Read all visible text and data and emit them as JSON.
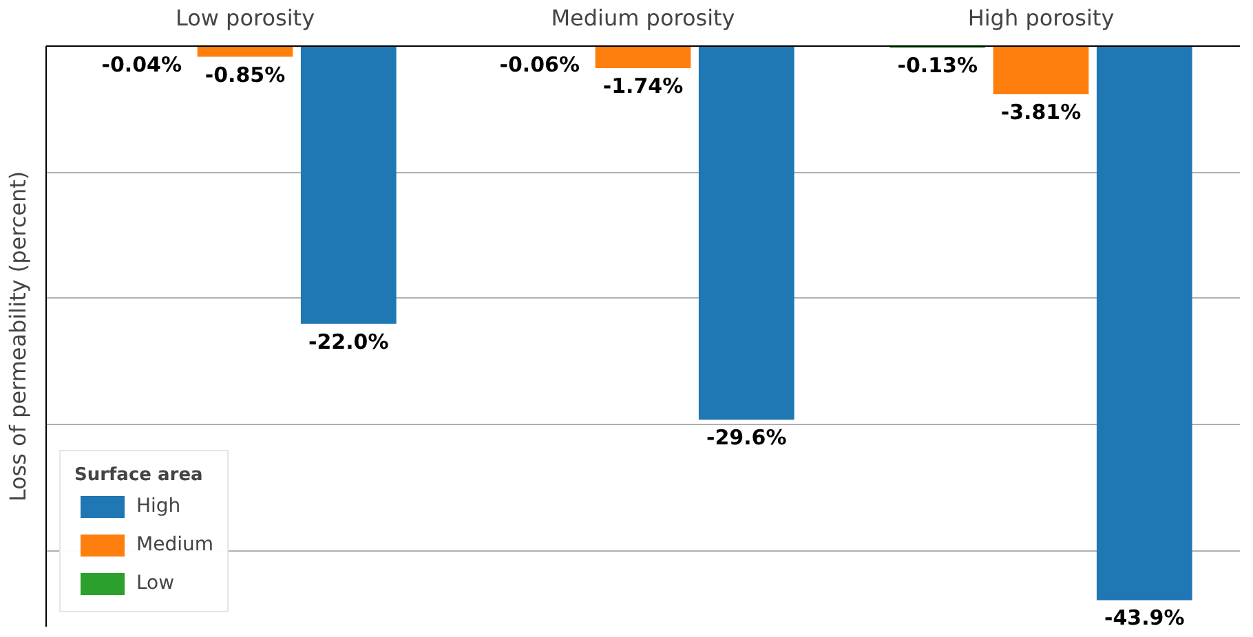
{
  "chart_data": {
    "type": "bar",
    "ylabel": "Loss of permeability (percent)",
    "legend_title": "Surface area",
    "categories": [
      "Low porosity",
      "Medium porosity",
      "High porosity"
    ],
    "series": [
      {
        "name": "High",
        "color": "#1f77b4",
        "values": [
          -22.0,
          -29.6,
          -43.9
        ],
        "value_labels": [
          "-22.0%",
          "-29.6%",
          "-43.9%"
        ]
      },
      {
        "name": "Medium",
        "color": "#ff7f0e",
        "values": [
          -0.85,
          -1.74,
          -3.81
        ],
        "value_labels": [
          "-0.85%",
          "-1.74%",
          "-3.81%"
        ]
      },
      {
        "name": "Low",
        "color": "#2ca02c",
        "values": [
          -0.04,
          -0.06,
          -0.13
        ],
        "value_labels": [
          "-0.04%",
          "-0.06%",
          "-0.13%"
        ]
      }
    ],
    "ylim": [
      -46,
      0
    ],
    "yticks": [
      {
        "value": 0,
        "label": null
      },
      {
        "value": -10,
        "label": null
      },
      {
        "value": -20,
        "label": null
      },
      {
        "value": -30,
        "label": null
      },
      {
        "value": -40,
        "label": null
      }
    ],
    "tick_labels": "x",
    "grid": "y",
    "legend": "bottom left"
  }
}
